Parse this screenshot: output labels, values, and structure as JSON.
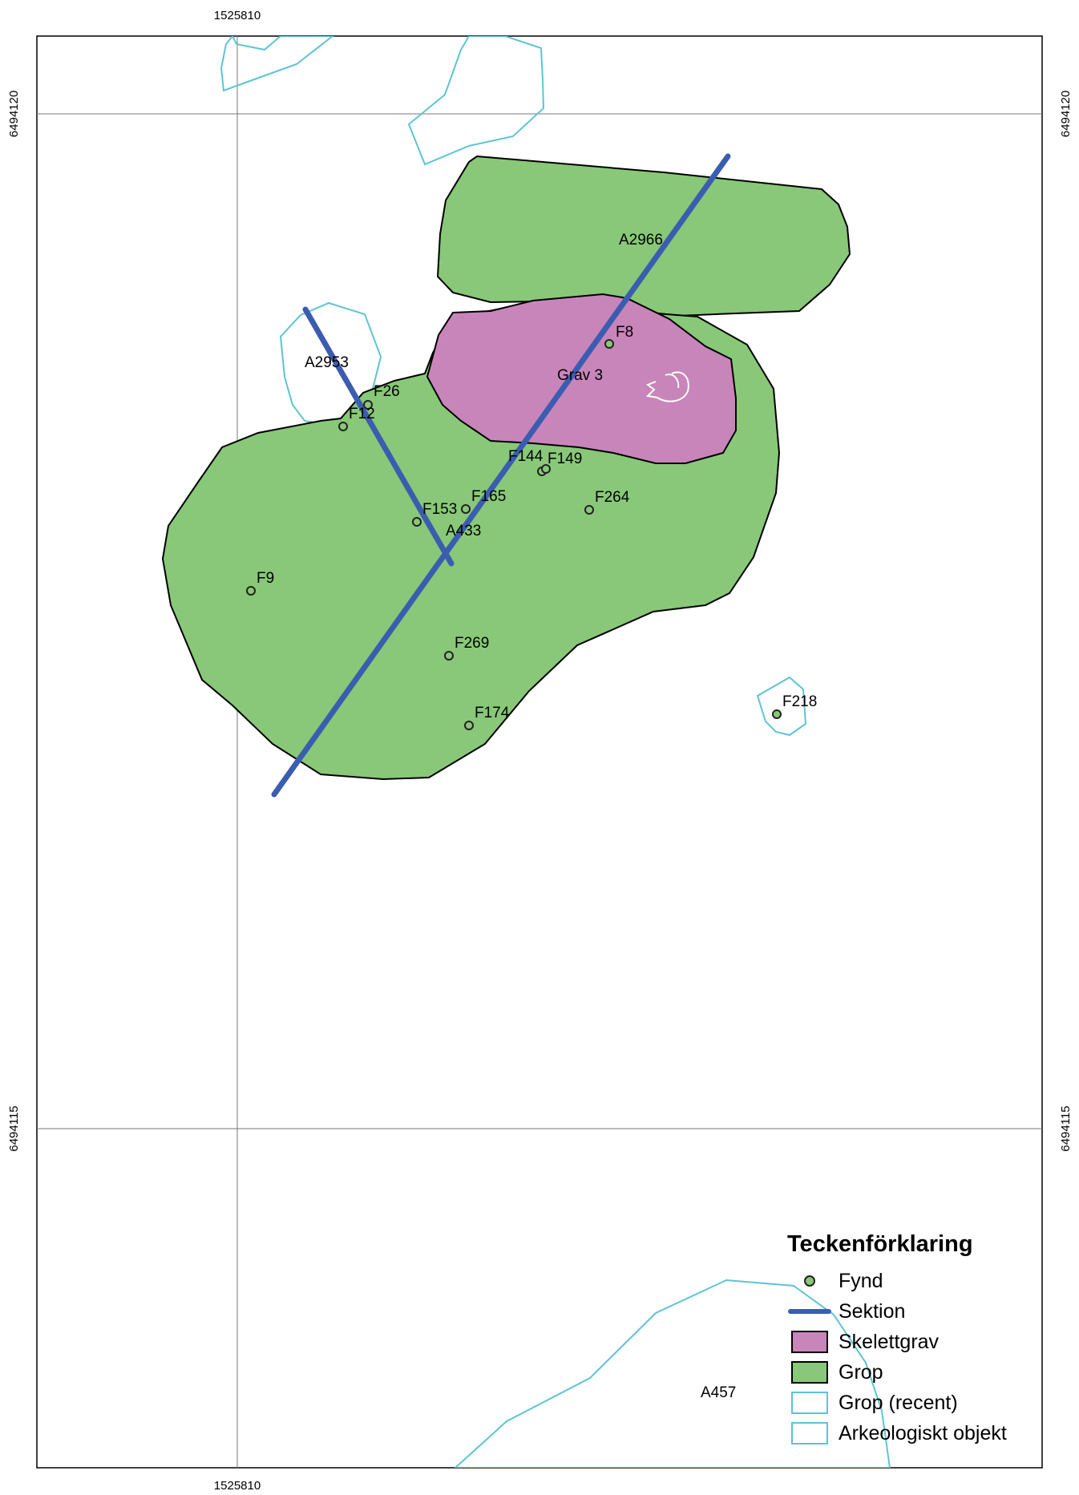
{
  "map": {
    "coords": {
      "x_top": "1525810",
      "x_bottom": "1525810",
      "y_upper_left": "6494120",
      "y_upper_right": "6494120",
      "y_lower_left": "6494115",
      "y_lower_right": "6494115"
    },
    "labels": {
      "a2966": "A2966",
      "a2953": "A2953",
      "grav3": "Grav 3",
      "a433": "A433",
      "a457": "A457"
    },
    "finds": [
      {
        "id": "F8",
        "label": "F8"
      },
      {
        "id": "F26",
        "label": "F26"
      },
      {
        "id": "F12",
        "label": "F12"
      },
      {
        "id": "F144",
        "label": "F144"
      },
      {
        "id": "F149",
        "label": "F149"
      },
      {
        "id": "F153",
        "label": "F153"
      },
      {
        "id": "F165",
        "label": "F165"
      },
      {
        "id": "F264",
        "label": "F264"
      },
      {
        "id": "F9",
        "label": "F9"
      },
      {
        "id": "F269",
        "label": "F269"
      },
      {
        "id": "F174",
        "label": "F174"
      },
      {
        "id": "F218",
        "label": "F218"
      }
    ],
    "colors": {
      "grop": "#88c878",
      "skelettgrav": "#c885ba",
      "sektion": "#3b5db0",
      "recent": "#5ec4d4",
      "fynd": "#88c878"
    }
  },
  "legend": {
    "title": "Teckenförklaring",
    "items": [
      {
        "label": "Fynd",
        "symbol": "dot"
      },
      {
        "label": "Sektion",
        "symbol": "line"
      },
      {
        "label": "Skelettgrav",
        "symbol": "skelettgrav-box"
      },
      {
        "label": "Grop",
        "symbol": "grop-box"
      },
      {
        "label": "Grop (recent)",
        "symbol": "recent-box"
      },
      {
        "label": "Arkeologiskt objekt",
        "symbol": "recent-box"
      }
    ]
  }
}
